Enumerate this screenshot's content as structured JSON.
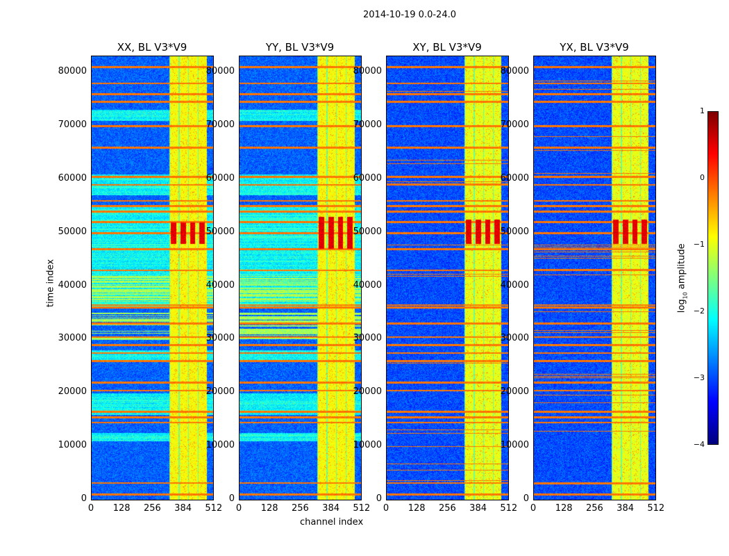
{
  "chart_data": {
    "type": "heatmap",
    "title": "2014-10-19 0.0-24.0",
    "xlabel": "channel index",
    "ylabel": "time index",
    "xlim": [
      0,
      512
    ],
    "ylim": [
      0,
      83000
    ],
    "xticks": [
      "0",
      "128",
      "256",
      "384",
      "512"
    ],
    "yticks": [
      "0",
      "10000",
      "20000",
      "30000",
      "40000",
      "50000",
      "60000",
      "70000",
      "80000"
    ],
    "colorbar": {
      "label": "log10 amplitude",
      "label_main": "log",
      "label_sub": "10",
      "label_rest": " amplitude",
      "range": [
        -4,
        1
      ],
      "ticks": [
        "1",
        "0",
        "−1",
        "−2",
        "−3",
        "−4"
      ],
      "colormap": "jet"
    },
    "panels": [
      {
        "title": "XX, BL V3*V9",
        "background": -2.9,
        "rfi_channels": [
          325,
          485
        ],
        "rfi_level": -0.9,
        "hot_time_bands": [
          [
            48000,
            52000
          ]
        ]
      },
      {
        "title": "YY, BL V3*V9",
        "background": -2.9,
        "rfi_channels": [
          325,
          485
        ],
        "rfi_level": -0.9,
        "hot_time_bands": [
          [
            47000,
            53000
          ]
        ]
      },
      {
        "title": "XY, BL V3*V9",
        "background": -3.0,
        "rfi_channels": [
          325,
          480
        ],
        "rfi_level": -1.0,
        "hot_time_bands": [
          [
            48000,
            52500
          ]
        ]
      },
      {
        "title": "YX, BL V3*V9",
        "background": -3.0,
        "rfi_channels": [
          325,
          480
        ],
        "rfi_level": -1.0,
        "hot_time_bands": [
          [
            48000,
            52500
          ]
        ]
      }
    ],
    "cyan_time_bands_parallel": [
      [
        71000,
        73000
      ],
      [
        57000,
        61000
      ],
      [
        36000,
        55000
      ],
      [
        26000,
        28000
      ],
      [
        16000,
        20000
      ],
      [
        11000,
        12500
      ]
    ],
    "yellow_time_bands_parallel": [
      [
        30000,
        35000
      ],
      [
        37000,
        42000
      ]
    ],
    "rfi_time_lines": [
      1000,
      3200,
      14500,
      15500,
      16500,
      20500,
      22000,
      26000,
      27500,
      29000,
      30500,
      33000,
      36000,
      36500,
      43000,
      47000,
      50000,
      52000,
      54000,
      55000,
      56000,
      59000,
      60500,
      66000,
      70000,
      74500,
      76000,
      78000,
      81000
    ]
  }
}
